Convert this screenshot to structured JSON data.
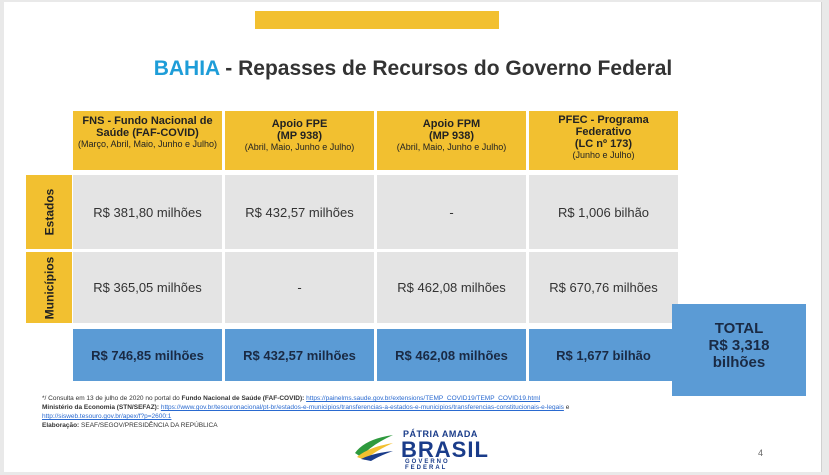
{
  "title": {
    "state": "BAHIA",
    "rest": " - Repasses de Recursos do Governo Federal"
  },
  "columns": [
    {
      "title": "FNS - Fundo Nacional de Saúde (FAF-COVID)",
      "sub": "",
      "period": "(Março, Abril, Maio, Junho e Julho)"
    },
    {
      "title": "Apoio FPE",
      "sub": "(MP 938)",
      "period": "(Abril, Maio, Junho e Julho)"
    },
    {
      "title": "Apoio FPM",
      "sub": "(MP 938)",
      "period": "(Abril, Maio, Junho e Julho)"
    },
    {
      "title": "PFEC - Programa Federativo",
      "sub": "(LC nº 173)",
      "period": "(Junho e Julho)"
    }
  ],
  "rows": [
    {
      "label": "Estados",
      "values": [
        "R$ 381,80 milhões",
        "R$ 432,57 milhões",
        "-",
        "R$ 1,006 bilhão"
      ]
    },
    {
      "label": "Municípios",
      "values": [
        "R$ 365,05 milhões",
        "-",
        "R$ 462,08 milhões",
        "R$ 670,76 milhões"
      ]
    }
  ],
  "totals": [
    "R$ 746,85 milhões",
    "R$ 432,57 milhões",
    "R$ 462,08 milhões",
    "R$ 1,677 bilhão"
  ],
  "grand_total": {
    "label": "TOTAL",
    "value": "R$ 3,318",
    "unit": "bilhões"
  },
  "footnotes": {
    "line1_prefix": "*/ Consulta em 13 de julho de 2020 no portal do ",
    "line1_bold": "Fundo Nacional de Saúde (FAF-COVID):",
    "line1_link": "https://painelms.saude.gov.br/extensions/TEMP_COVID19/TEMP_COVID19.html",
    "line2_bold": "Ministério da Economia (STN/SEFAZ):",
    "line2_link": "https://www.gov.br/tesouronacional/pt-br/estados-e-municipios/transferencias-a-estados-e-municipios/transferencias-constitucionais-e-legais",
    "line2_suffix": " e",
    "line3_link": "http://sisweb.tesouro.gov.br/apex/f?p=2600:1",
    "line4_bold": "Elaboração:",
    "line4_text": " SEAF/SEGOV/PRESIDÊNCIA DA REPÚBLICA"
  },
  "logo": {
    "line1": "PÁTRIA AMADA",
    "line2": "BRASIL",
    "line3": "GOVERNO FEDERAL"
  },
  "page_number": "4",
  "colors": {
    "accent_yellow": "#f2c030",
    "total_blue": "#5b9bd5",
    "title_blue": "#1e9dd8",
    "cell_gray": "#e4e4e4"
  }
}
